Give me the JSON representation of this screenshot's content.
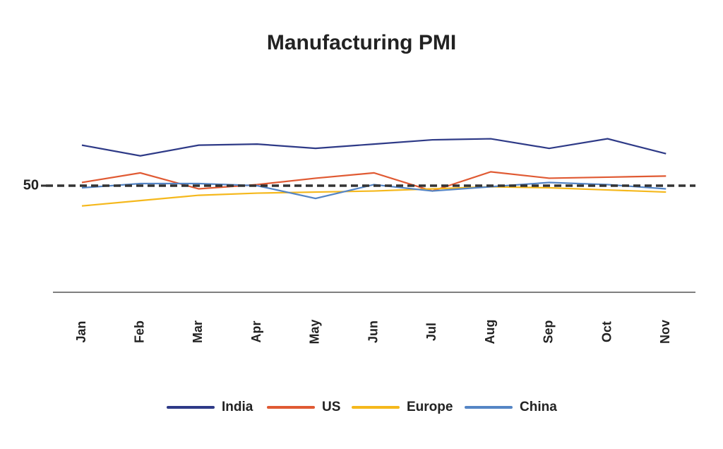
{
  "chart_data": {
    "type": "line",
    "title": "Manufacturing PMI",
    "categories": [
      "Jan",
      "Feb",
      "Mar",
      "Apr",
      "May",
      "Jun",
      "Jul",
      "Aug",
      "Sep",
      "Oct",
      "Nov"
    ],
    "series": [
      {
        "name": "India",
        "color": "#2e3a87",
        "values": [
          53.8,
          52.8,
          53.8,
          53.9,
          53.5,
          53.9,
          54.3,
          54.4,
          53.5,
          54.4,
          53.0
        ]
      },
      {
        "name": "US",
        "color": "#e05a33",
        "values": [
          50.3,
          51.2,
          49.7,
          50.1,
          50.7,
          51.2,
          49.5,
          51.3,
          50.7,
          50.8,
          50.9
        ]
      },
      {
        "name": "Europe",
        "color": "#f5b81c",
        "values": [
          48.1,
          48.6,
          49.1,
          49.3,
          49.4,
          49.5,
          49.7,
          49.9,
          49.8,
          49.6,
          49.4
        ]
      },
      {
        "name": "China",
        "color": "#5585c5",
        "values": [
          49.8,
          50.2,
          50.2,
          50.0,
          48.8,
          50.1,
          49.5,
          49.9,
          50.3,
          50.1,
          49.7
        ]
      }
    ],
    "ylim": [
      40,
      60
    ],
    "yticks": [
      50
    ],
    "reference_line": 50,
    "legend": "bottom"
  }
}
